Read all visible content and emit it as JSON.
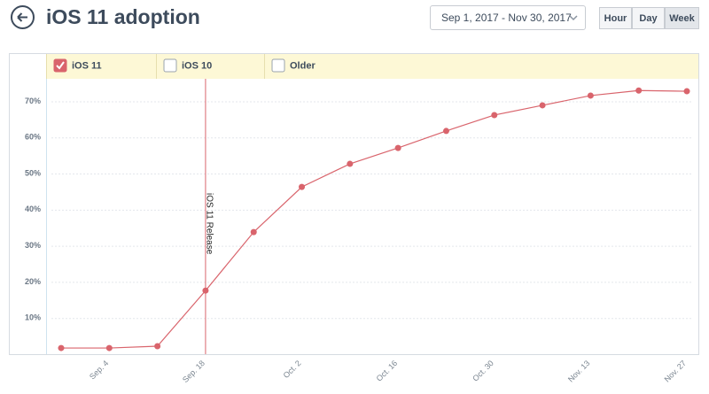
{
  "header": {
    "title": "iOS 11 adoption",
    "date_range": "Sep 1, 2017 - Nov 30, 2017",
    "granularity": [
      "Hour",
      "Day",
      "Week"
    ],
    "active": "Week"
  },
  "chart_data": {
    "type": "line",
    "categories": [
      null,
      "Sep. 4",
      null,
      "Sep. 18",
      null,
      "Oct. 2",
      null,
      "Oct. 16",
      null,
      "Oct. 30",
      null,
      "Nov. 13",
      null,
      "Nov. 27"
    ],
    "series": [
      {
        "name": "iOS 11",
        "color": "#d9646c",
        "values": [
          1.7,
          1.7,
          2.2,
          17.6,
          33.8,
          46.3,
          52.7,
          57.1,
          61.8,
          66.2,
          68.9,
          71.6,
          73.0,
          72.8
        ]
      }
    ],
    "unchecked_series": [
      "iOS 10",
      "Older"
    ],
    "annotations": [
      {
        "text": "iOS 11 Release",
        "category": "Sep. 18"
      }
    ],
    "ylim": [
      0,
      76
    ],
    "yticks": [
      {
        "value": 10,
        "label": "10%"
      },
      {
        "value": 20,
        "label": "20%"
      },
      {
        "value": 30,
        "label": "30%"
      },
      {
        "value": 40,
        "label": "40%"
      },
      {
        "value": 50,
        "label": "50%"
      },
      {
        "value": 60,
        "label": "60%"
      },
      {
        "value": 70,
        "label": "70%"
      }
    ],
    "grid": true
  }
}
